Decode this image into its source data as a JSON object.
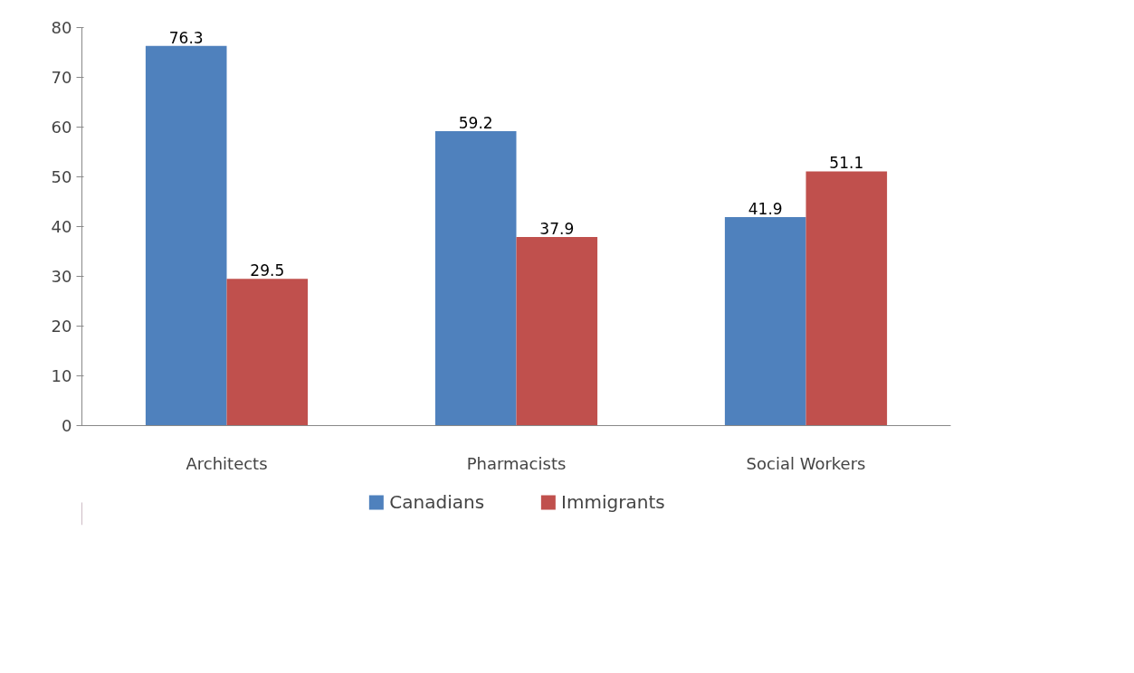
{
  "chart_data": {
    "type": "bar",
    "categories": [
      "Architects",
      "Pharmacists",
      "Social Workers"
    ],
    "series": [
      {
        "name": "Canadians",
        "color": "#4f81bd",
        "values": [
          76.3,
          59.2,
          41.9
        ]
      },
      {
        "name": "Immigrants",
        "color": "#c0504d",
        "values": [
          29.5,
          37.9,
          51.1
        ]
      }
    ],
    "ylim": [
      0,
      80
    ],
    "yticks": [
      0,
      10,
      20,
      30,
      40,
      50,
      60,
      70,
      80
    ],
    "data_labels": true,
    "legend": "bottom",
    "grid": false
  }
}
